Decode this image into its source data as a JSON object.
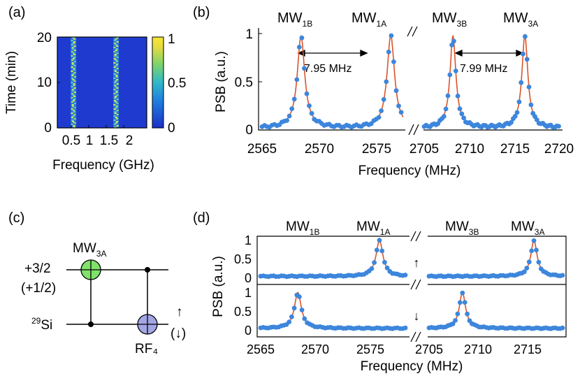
{
  "panels": {
    "a": "(a)",
    "b": "(b)",
    "c": "(c)",
    "d": "(d)"
  },
  "colors": {
    "points": "#3d86dc",
    "fit": "#d9542a",
    "qubit_mw": "#80e26a",
    "qubit_rf": "#a3a6e4",
    "map_bg": "#1f3bcf",
    "line_hot": "#d7ec55"
  },
  "panel_a": {
    "ylabel": "Time (min)",
    "xlabel": "Frequency (GHz)",
    "yticks": [
      "0",
      "10",
      "20"
    ],
    "xticks": [
      "0.5",
      "1",
      "1.5",
      "2"
    ],
    "colorbar_ticks": [
      "0",
      "0.5",
      "1"
    ]
  },
  "panel_b": {
    "ylabel": "PSB (a.u.)",
    "xlabel": "Frequency (MHz)",
    "yticks": [
      "0",
      "0.5",
      "1"
    ],
    "xticks_left": [
      "2565",
      "2570",
      "2575"
    ],
    "xticks_right": [
      "2705",
      "2710",
      "2715",
      "2720"
    ],
    "peak_labels": [
      {
        "base": "MW",
        "sub": "1B"
      },
      {
        "base": "MW",
        "sub": "1A"
      },
      {
        "base": "MW",
        "sub": "3B"
      },
      {
        "base": "MW",
        "sub": "3A"
      }
    ],
    "split_left": "7.95 MHz",
    "split_right": "7.99 MHz"
  },
  "panel_c": {
    "upper_label": "+3/2",
    "upper_label2": "(+1/2)",
    "lower_label_sup": "29",
    "lower_label": "Si",
    "gate_mw": {
      "base": "MW",
      "sub": "3A"
    },
    "gate_rf": "RF₄",
    "spin_up": "↑",
    "spin_down": "(↓)"
  },
  "panel_d": {
    "ylabel": "PSB (a.u.)",
    "xlabel": "Frequency (MHz)",
    "yticks": [
      "0",
      "0.5",
      "1"
    ],
    "xticks_left": [
      "2565",
      "2570",
      "2575"
    ],
    "xticks_right": [
      "2705",
      "2710",
      "2715"
    ],
    "peak_labels": [
      {
        "base": "MW",
        "sub": "1B"
      },
      {
        "base": "MW",
        "sub": "1A"
      },
      {
        "base": "MW",
        "sub": "3B"
      },
      {
        "base": "MW",
        "sub": "3A"
      }
    ],
    "arrow_up": "↑",
    "arrow_down": "↓"
  },
  "chart_data": [
    {
      "type": "heatmap",
      "panel": "a",
      "xlabel": "Frequency (GHz)",
      "ylabel": "Time (min)",
      "xlim": [
        0.2,
        2.3
      ],
      "ylim": [
        0,
        20
      ],
      "colorbar_range": [
        0,
        1
      ],
      "bright_lines_ghz": [
        0.58,
        1.58
      ]
    },
    {
      "type": "line",
      "panel": "b",
      "xlabel": "Frequency (MHz)",
      "ylabel": "PSB (a.u.)",
      "ylim": [
        0,
        1
      ],
      "xlim_left": [
        2565,
        2577.5
      ],
      "xlim_right": [
        2705,
        2720
      ],
      "peaks": [
        {
          "name": "MW1B",
          "center": 2568.45,
          "amplitude": 0.95
        },
        {
          "name": "MW1A",
          "center": 2576.4,
          "amplitude": 0.96
        },
        {
          "name": "MW3B",
          "center": 2708.2,
          "amplitude": 0.95
        },
        {
          "name": "MW3A",
          "center": 2716.2,
          "amplitude": 0.96
        }
      ],
      "splittings_mhz": [
        7.95,
        7.99
      ],
      "baseline": 0.02
    },
    {
      "type": "line",
      "panel": "d-upper",
      "condition": "↑",
      "xlabel": "Frequency (MHz)",
      "ylabel": "PSB (a.u.)",
      "ylim": [
        0,
        1
      ],
      "xlim_left": [
        2565,
        2579
      ],
      "xlim_right": [
        2705,
        2719
      ],
      "peaks": [
        {
          "name": "MW1A",
          "center": 2576.5,
          "amplitude": 0.95
        },
        {
          "name": "MW3A",
          "center": 2716.0,
          "amplitude": 0.95
        }
      ],
      "baseline": 0.05
    },
    {
      "type": "line",
      "panel": "d-lower",
      "condition": "↓",
      "xlabel": "Frequency (MHz)",
      "ylabel": "PSB (a.u.)",
      "ylim": [
        0,
        1
      ],
      "xlim_left": [
        2565,
        2579
      ],
      "xlim_right": [
        2705,
        2719
      ],
      "peaks": [
        {
          "name": "MW1B",
          "center": 2568.6,
          "amplitude": 0.95
        },
        {
          "name": "MW3B",
          "center": 2708.5,
          "amplitude": 0.95
        }
      ],
      "baseline": 0.06
    }
  ]
}
